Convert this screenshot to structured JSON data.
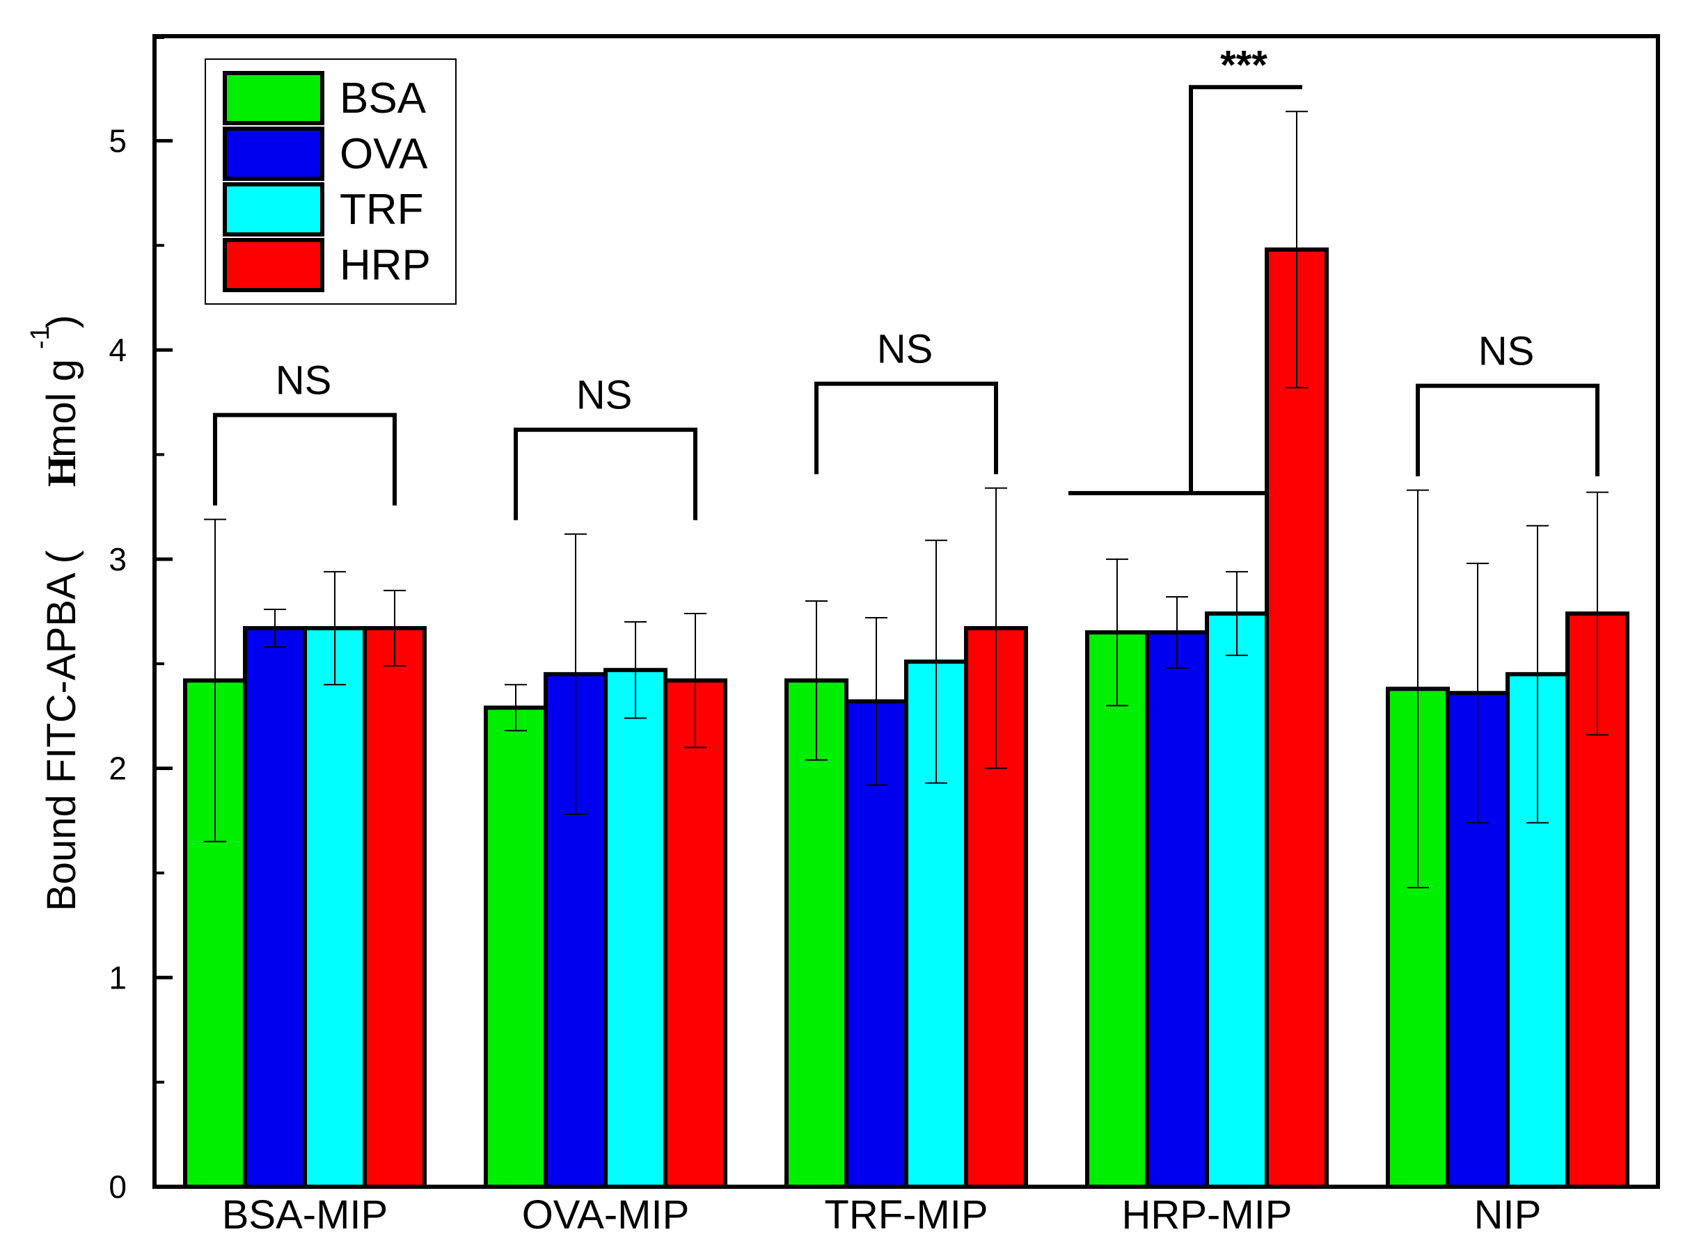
{
  "chart_data": {
    "type": "bar",
    "title": "",
    "xlabel": "",
    "ylabel_main": "Bound FITC-APBA (",
    "ylabel_unit": "mol g",
    "ylabel_mu": "H",
    "ylabel_exp": "-1",
    "ylabel_close": ")",
    "ylim": [
      0,
      5.5
    ],
    "yticks": [
      0,
      1,
      2,
      3,
      4,
      5
    ],
    "ytick_labels": [
      "0",
      "1",
      "2",
      "3",
      "4",
      "5"
    ],
    "categories": [
      "BSA-MIP",
      "OVA-MIP",
      "TRF-MIP",
      "HRP-MIP",
      "NIP"
    ],
    "series": [
      {
        "name": "BSA",
        "color": "#00ee00",
        "values": [
          2.42,
          2.29,
          2.42,
          2.65,
          2.38
        ],
        "errors": [
          0.77,
          0.11,
          0.38,
          0.35,
          0.95
        ]
      },
      {
        "name": "OVA",
        "color": "#0000ee",
        "values": [
          2.67,
          2.45,
          2.32,
          2.65,
          2.36
        ],
        "errors": [
          0.09,
          0.67,
          0.4,
          0.17,
          0.62
        ]
      },
      {
        "name": "TRF",
        "color": "#00ffff",
        "values": [
          2.67,
          2.47,
          2.51,
          2.74,
          2.45
        ],
        "errors": [
          0.27,
          0.23,
          0.58,
          0.2,
          0.71
        ]
      },
      {
        "name": "HRP",
        "color": "#ff0000",
        "values": [
          2.67,
          2.42,
          2.67,
          4.48,
          2.74
        ],
        "errors": [
          0.18,
          0.32,
          0.67,
          0.66,
          0.58
        ]
      }
    ],
    "annotations": [
      {
        "group": 0,
        "text": "NS",
        "bracket": "open-bottom"
      },
      {
        "group": 1,
        "text": "NS",
        "bracket": "open-bottom"
      },
      {
        "group": 2,
        "text": "NS",
        "bracket": "open-bottom"
      },
      {
        "group": 3,
        "text": "***",
        "bracket": "significance"
      },
      {
        "group": 4,
        "text": "NS",
        "bracket": "open-bottom"
      }
    ],
    "legend_position": "top-left",
    "grid": false
  }
}
